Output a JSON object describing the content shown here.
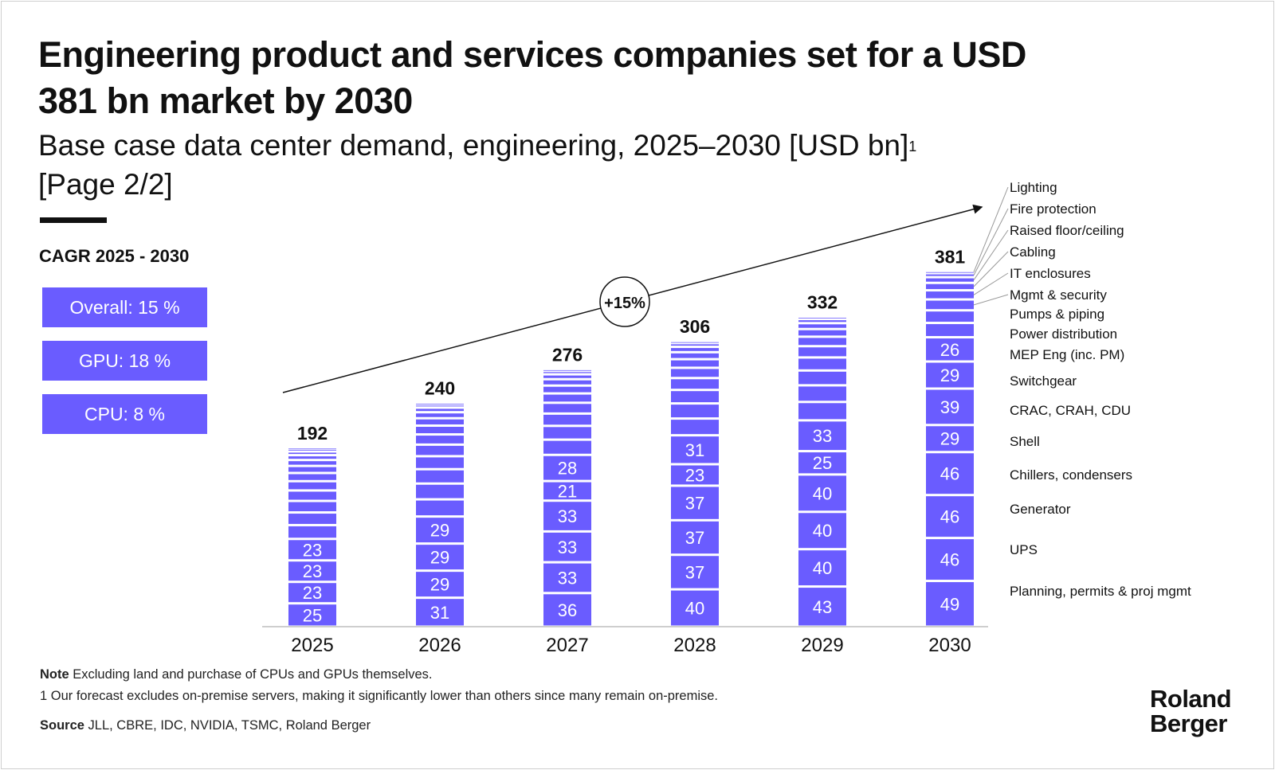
{
  "title": "Engineering product and services companies set for a USD 381 bn market by 2030",
  "subtitle": "Base case data center demand, engineering, 2025–2030 [USD bn]",
  "subtitle_sup": "1",
  "subtitle_page": "[Page 2/2]",
  "cagr": {
    "heading": "CAGR 2025 - 2030",
    "items": [
      "Overall: 15 %",
      "GPU: 18 %",
      "CPU: 8 %"
    ]
  },
  "growth_badge": "+15%",
  "notes": {
    "note_label": "Note",
    "note_text": "Excluding land and purchase of CPUs and GPUs themselves.",
    "footnote": "1 Our forecast excludes on-premise servers, making it significantly lower than others since many remain on-premise.",
    "source_label": "Source",
    "source_text": "JLL, CBRE, IDC, NVIDIA, TSMC, Roland Berger"
  },
  "logo": {
    "line1": "Roland",
    "line2": "Berger"
  },
  "colors": {
    "bar": "#6a5cff",
    "text": "#111111",
    "axis": "#bdbdbd"
  },
  "chart_data": {
    "type": "bar",
    "stacked": true,
    "categories": [
      "2025",
      "2026",
      "2027",
      "2028",
      "2029",
      "2030"
    ],
    "totals": [
      192,
      240,
      276,
      306,
      332,
      381
    ],
    "segments_bottom_to_top": [
      "Planning, permits & proj mgmt",
      "UPS",
      "Generator",
      "Chillers, condensers",
      "Shell",
      "CRAC, CRAH, CDU",
      "Switchgear",
      "MEP Eng (inc. PM)",
      "Power distribution",
      "Pumps & piping",
      "Mgmt & security",
      "IT enclosures",
      "Cabling",
      "Raised floor/ceiling",
      "Fire protection",
      "Lighting"
    ],
    "labeled_values": {
      "2025": [
        25,
        23,
        23,
        23
      ],
      "2026": [
        31,
        29,
        29,
        29
      ],
      "2027": [
        36,
        33,
        33,
        33,
        21,
        28
      ],
      "2028": [
        40,
        37,
        37,
        37,
        23,
        31
      ],
      "2029": [
        43,
        40,
        40,
        40,
        25,
        33
      ],
      "2030": [
        49,
        46,
        46,
        46,
        29,
        39,
        29,
        26
      ]
    },
    "trend_label": "+15%"
  }
}
